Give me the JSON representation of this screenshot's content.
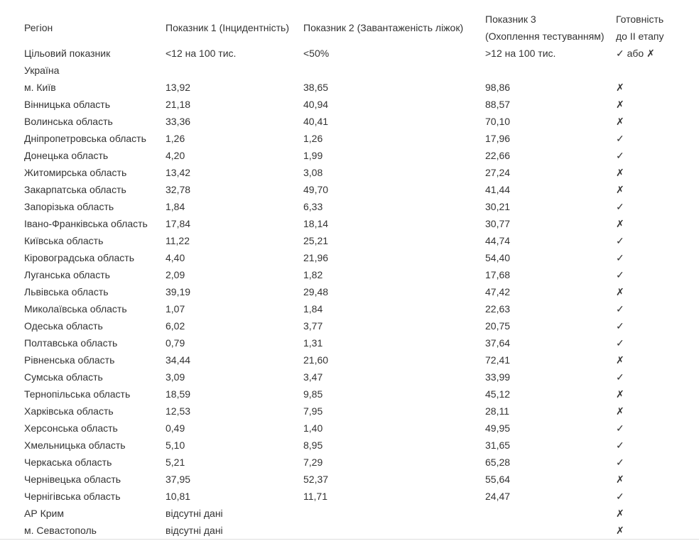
{
  "table": {
    "header": [
      [
        "Регіон"
      ],
      [
        "Показник 1 (Інцидентність)"
      ],
      [
        "Показник 2 (Завантаженість ліжок)"
      ],
      [
        "Показник 3",
        "(Охоплення тестуванням)"
      ],
      [
        "Готовність",
        "до II етапу"
      ]
    ],
    "rows": [
      [
        "Цільовий показник",
        "<12 на 100 тис.",
        "<50%",
        ">12 на 100 тис.",
        "✓ або ✗"
      ],
      [
        "Україна",
        null,
        null,
        null,
        null
      ],
      [
        "м. Київ",
        "13,92",
        "38,65",
        "98,86",
        "✗"
      ],
      [
        "Вінницька область",
        "21,18",
        "40,94",
        "88,57",
        "✗"
      ],
      [
        "Волинська область",
        "33,36",
        "40,41",
        "70,10",
        "✗"
      ],
      [
        "Дніпропетровська область",
        "1,26",
        "1,26",
        "17,96",
        "✓"
      ],
      [
        "Донецька область",
        "4,20",
        "1,99",
        "22,66",
        "✓"
      ],
      [
        "Житомирська область",
        "13,42",
        "3,08",
        "27,24",
        "✗"
      ],
      [
        "Закарпатська область",
        "32,78",
        "49,70",
        "41,44",
        "✗"
      ],
      [
        "Запорізька область",
        "1,84",
        "6,33",
        "30,21",
        "✓"
      ],
      [
        "Івано-Франківська область",
        "17,84",
        "18,14",
        "30,77",
        "✗"
      ],
      [
        "Київська область",
        "11,22",
        "25,21",
        "44,74",
        "✓"
      ],
      [
        "Кіровоградська область",
        "4,40",
        "21,96",
        "54,40",
        "✓"
      ],
      [
        "Луганська область",
        "2,09",
        "1,82",
        "17,68",
        "✓"
      ],
      [
        "Львівська область",
        "39,19",
        "29,48",
        "47,42",
        "✗"
      ],
      [
        "Миколаївська область",
        "1,07",
        "1,84",
        "22,63",
        "✓"
      ],
      [
        "Одеська область",
        "6,02",
        "3,77",
        "20,75",
        "✓"
      ],
      [
        "Полтавська область",
        "0,79",
        "1,31",
        "37,64",
        "✓"
      ],
      [
        "Рівненська область",
        "34,44",
        "21,60",
        "72,41",
        "✗"
      ],
      [
        "Сумська область",
        "3,09",
        "3,47",
        "33,99",
        "✓"
      ],
      [
        "Тернопільська область",
        "18,59",
        "9,85",
        "45,12",
        "✗"
      ],
      [
        "Харківська область",
        "12,53",
        "7,95",
        "28,11",
        "✗"
      ],
      [
        "Херсонська область",
        "0,49",
        "1,40",
        "49,95",
        "✓"
      ],
      [
        "Хмельницька область",
        "5,10",
        "8,95",
        "31,65",
        "✓"
      ],
      [
        "Черкаська область",
        "5,21",
        "7,29",
        "65,28",
        "✓"
      ],
      [
        "Чернівецька область",
        "37,95",
        "52,37",
        "55,64",
        "✗"
      ],
      [
        "Чернігівська область",
        "10,81",
        "11,71",
        "24,47",
        "✓"
      ],
      [
        "АР Крим",
        "відсутні дані",
        null,
        null,
        "✗"
      ],
      [
        "м. Севастополь",
        "відсутні дані",
        null,
        null,
        "✗"
      ]
    ]
  }
}
